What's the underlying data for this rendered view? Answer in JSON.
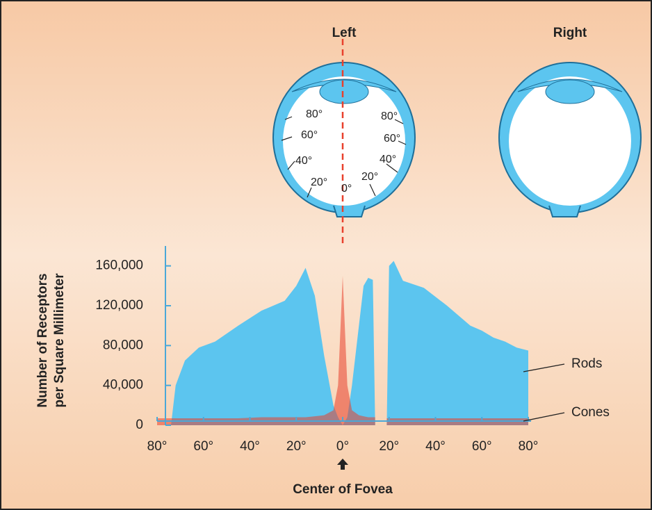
{
  "chart_data": {
    "type": "area",
    "eye_titles": [
      "Left",
      "Right"
    ],
    "eye_angle_labels": [
      "80°",
      "60°",
      "40°",
      "20°",
      "0°",
      "20°",
      "40°",
      "60°",
      "80°"
    ],
    "ylabel": [
      "Number of Receptors",
      "per Square Millimeter"
    ],
    "xlabel": "Center of Fovea",
    "x": [
      -80,
      -74,
      -72,
      -68,
      -62,
      -55,
      -45,
      -35,
      -25,
      -20,
      -16,
      -12,
      -8,
      -4,
      -2,
      0,
      2,
      4,
      7,
      9,
      11,
      13,
      14,
      16,
      19,
      20,
      22,
      26,
      35,
      45,
      55,
      60,
      65,
      70,
      75,
      80
    ],
    "series": [
      {
        "name": "Rods",
        "color": "#5cc5ef",
        "values": [
          null,
          0,
          40000,
          65000,
          78000,
          84000,
          100000,
          115000,
          125000,
          140000,
          158000,
          130000,
          70000,
          20000,
          8000,
          0,
          8000,
          40000,
          100000,
          140000,
          148000,
          146000,
          0,
          null,
          0,
          160000,
          165000,
          145000,
          138000,
          120000,
          100000,
          95000,
          88000,
          84000,
          78000,
          75000
        ]
      },
      {
        "name": "Cones",
        "color": "#e8402c",
        "values": [
          7000,
          7000,
          7000,
          7000,
          7000,
          7000,
          7000,
          8000,
          8000,
          8000,
          8000,
          9000,
          10000,
          15000,
          40000,
          150000,
          40000,
          15000,
          10000,
          9000,
          8000,
          8000,
          8000,
          null,
          7000,
          7000,
          7000,
          7000,
          7000,
          7000,
          7000,
          7000,
          7000,
          7000,
          7000,
          7000
        ]
      }
    ],
    "xlim": [
      -80,
      80
    ],
    "xticks": [
      {
        "value": -80,
        "label": "80°"
      },
      {
        "value": -60,
        "label": "60°"
      },
      {
        "value": -40,
        "label": "40°"
      },
      {
        "value": -20,
        "label": "20°"
      },
      {
        "value": 0,
        "label": "0°"
      },
      {
        "value": 20,
        "label": "20°"
      },
      {
        "value": 40,
        "label": "40°"
      },
      {
        "value": 60,
        "label": "60°"
      },
      {
        "value": 80,
        "label": "80°"
      }
    ],
    "ylim": [
      0,
      180000
    ],
    "yticks": [
      0,
      {
        "value": 40000,
        "label": "40,000"
      },
      {
        "value": 80000,
        "label": "80,000"
      },
      {
        "value": 120000,
        "label": "120,000"
      },
      {
        "value": 160000,
        "label": "160,000"
      }
    ]
  }
}
